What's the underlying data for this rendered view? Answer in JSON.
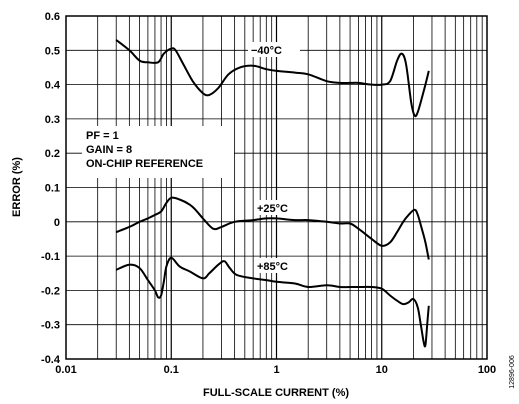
{
  "chart_data": {
    "type": "line",
    "title": "",
    "xlabel": "FULL-SCALE CURRENT (%)",
    "ylabel": "ERROR (%)",
    "x_scale": "log",
    "xlim": [
      0.01,
      100
    ],
    "ylim": [
      -0.4,
      0.6
    ],
    "grid": true,
    "x_ticks": [
      "0.01",
      "0.1",
      "1",
      "10",
      "100"
    ],
    "y_ticks": [
      "-0.4",
      "-0.3",
      "-0.2",
      "-0.1",
      "0",
      "0.1",
      "0.2",
      "0.3",
      "0.4",
      "0.5",
      "0.6"
    ],
    "x_tick_values": [
      0.01,
      0.1,
      1,
      10,
      100
    ],
    "y_tick_values": [
      -0.4,
      -0.3,
      -0.2,
      -0.1,
      0,
      0.1,
      0.2,
      0.3,
      0.4,
      0.5,
      0.6
    ],
    "conditions": [
      "PF = 1",
      "GAIN = 8",
      "ON-CHIP REFERENCE"
    ],
    "figure_id": "12896-006",
    "series": [
      {
        "name": "−40°C",
        "x": [
          0.03,
          0.04,
          0.05,
          0.06,
          0.075,
          0.085,
          0.1,
          0.11,
          0.13,
          0.16,
          0.2,
          0.23,
          0.28,
          0.35,
          0.45,
          0.6,
          0.8,
          1.0,
          1.5,
          2.0,
          3.0,
          4.0,
          5.0,
          6.0,
          8.0,
          10.0,
          12.0,
          14.0,
          15.5,
          17.0,
          19.0,
          20.5,
          22.0,
          25.0,
          28.0
        ],
        "y": [
          0.53,
          0.5,
          0.47,
          0.465,
          0.465,
          0.49,
          0.505,
          0.5,
          0.46,
          0.41,
          0.375,
          0.37,
          0.39,
          0.43,
          0.45,
          0.455,
          0.445,
          0.44,
          0.435,
          0.43,
          0.41,
          0.405,
          0.405,
          0.405,
          0.4,
          0.4,
          0.41,
          0.47,
          0.49,
          0.46,
          0.35,
          0.31,
          0.32,
          0.38,
          0.44
        ]
      },
      {
        "name": "+25°C",
        "x": [
          0.03,
          0.04,
          0.05,
          0.06,
          0.07,
          0.08,
          0.09,
          0.1,
          0.12,
          0.15,
          0.17,
          0.2,
          0.25,
          0.3,
          0.4,
          0.6,
          0.8,
          1.0,
          1.5,
          2.0,
          3.0,
          4.0,
          5.0,
          6.0,
          8.0,
          10.0,
          12.0,
          14.0,
          16.0,
          18.0,
          20.5,
          22.0,
          24.0,
          26.0,
          28.0
        ],
        "y": [
          -0.03,
          -0.015,
          0.0,
          0.01,
          0.02,
          0.03,
          0.055,
          0.07,
          0.065,
          0.05,
          0.035,
          0.01,
          -0.02,
          -0.015,
          0.0,
          0.005,
          0.01,
          0.01,
          0.005,
          0.005,
          0.0,
          -0.005,
          -0.005,
          -0.02,
          -0.05,
          -0.07,
          -0.06,
          -0.03,
          0.0,
          0.02,
          0.035,
          0.02,
          -0.02,
          -0.06,
          -0.11
        ]
      },
      {
        "name": "+85°C",
        "x": [
          0.03,
          0.04,
          0.05,
          0.06,
          0.07,
          0.075,
          0.08,
          0.085,
          0.09,
          0.1,
          0.12,
          0.15,
          0.2,
          0.23,
          0.28,
          0.32,
          0.36,
          0.42,
          0.6,
          0.8,
          1.0,
          1.5,
          2.0,
          3.0,
          4.0,
          5.0,
          6.0,
          8.0,
          10.0,
          12.0,
          14.0,
          16.0,
          18.0,
          20.0,
          22.0,
          23.5,
          25.0,
          26.0,
          27.0,
          28.0
        ],
        "y": [
          -0.14,
          -0.125,
          -0.135,
          -0.17,
          -0.2,
          -0.22,
          -0.215,
          -0.175,
          -0.13,
          -0.105,
          -0.13,
          -0.145,
          -0.165,
          -0.15,
          -0.125,
          -0.115,
          -0.135,
          -0.155,
          -0.165,
          -0.17,
          -0.175,
          -0.18,
          -0.19,
          -0.185,
          -0.19,
          -0.19,
          -0.19,
          -0.19,
          -0.195,
          -0.215,
          -0.23,
          -0.24,
          -0.235,
          -0.225,
          -0.25,
          -0.3,
          -0.35,
          -0.36,
          -0.3,
          -0.245
        ]
      }
    ]
  }
}
